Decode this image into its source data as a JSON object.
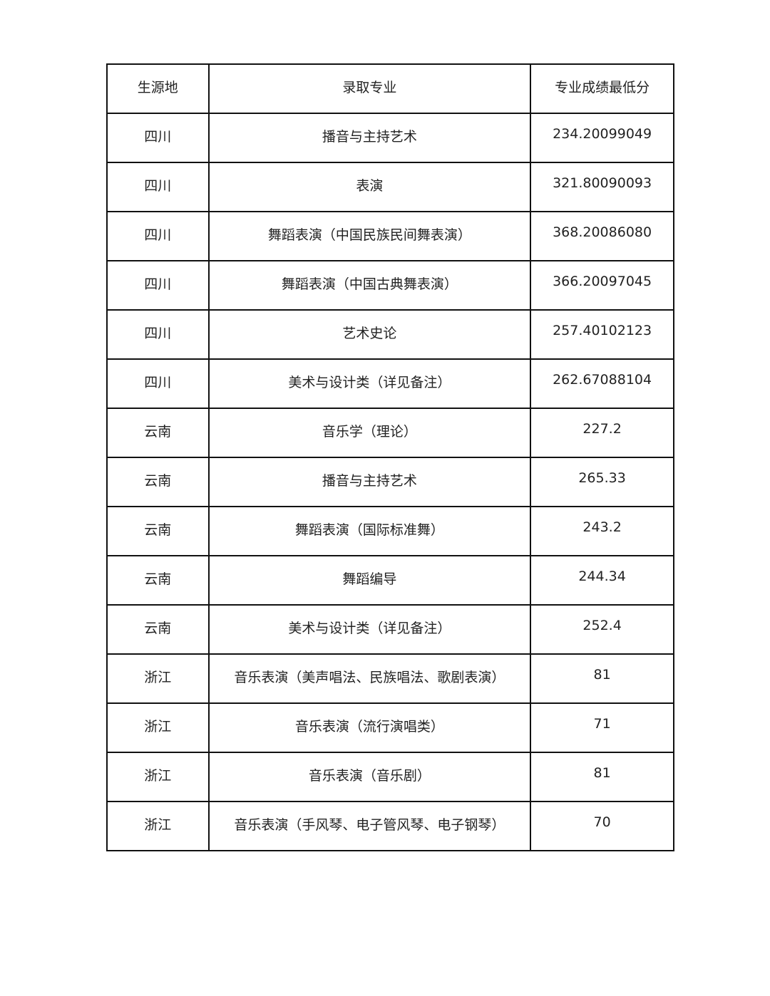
{
  "table": {
    "headers": [
      "生源地",
      "录取专业",
      "专业成绩最低分"
    ],
    "rows": [
      [
        "四川",
        "播音与主持艺术",
        "234.20099049"
      ],
      [
        "四川",
        "表演",
        "321.80090093"
      ],
      [
        "四川",
        "舞蹈表演（中国民族民间舞表演）",
        "368.20086080"
      ],
      [
        "四川",
        "舞蹈表演（中国古典舞表演）",
        "366.20097045"
      ],
      [
        "四川",
        "艺术史论",
        "257.40102123"
      ],
      [
        "四川",
        "美术与设计类（详见备注）",
        "262.67088104"
      ],
      [
        "云南",
        "音乐学（理论）",
        "227.2"
      ],
      [
        "云南",
        "播音与主持艺术",
        "265.33"
      ],
      [
        "云南",
        "舞蹈表演（国际标准舞）",
        "243.2"
      ],
      [
        "云南",
        "舞蹈编导",
        "244.34"
      ],
      [
        "云南",
        "美术与设计类（详见备注）",
        "252.4"
      ],
      [
        "浙江",
        "音乐表演（美声唱法、民族唱法、歌剧表演）",
        "81"
      ],
      [
        "浙江",
        "音乐表演（流行演唱类）",
        "71"
      ],
      [
        "浙江",
        "音乐表演（音乐剧）",
        "81"
      ],
      [
        "浙江",
        "音乐表演（手风琴、电子管风琴、电子钢琴）",
        "70"
      ]
    ]
  }
}
